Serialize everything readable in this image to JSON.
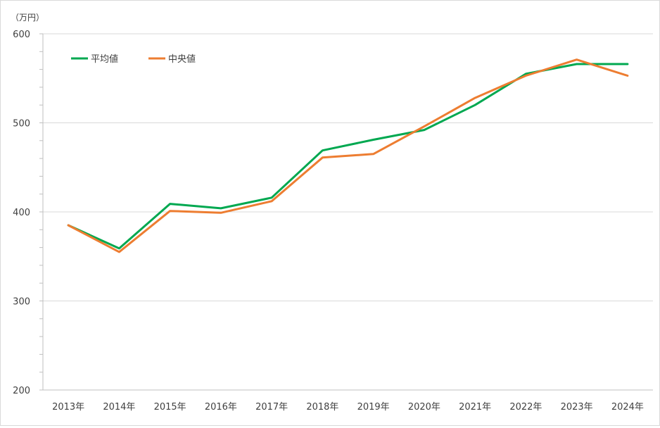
{
  "chart_data": {
    "type": "line",
    "unit_label": "（万円）",
    "categories": [
      "2013年",
      "2014年",
      "2015年",
      "2016年",
      "2017年",
      "2018年",
      "2019年",
      "2020年",
      "2021年",
      "2022年",
      "2023年",
      "2024年"
    ],
    "series": [
      {
        "name": "平均値",
        "color": "#00a850",
        "values": [
          385,
          359,
          409,
          404,
          416,
          469,
          481,
          492,
          520,
          555,
          566,
          566
        ]
      },
      {
        "name": "中央値",
        "color": "#ed7d31",
        "values": [
          385,
          355,
          401,
          399,
          412,
          461,
          465,
          496,
          528,
          553,
          571,
          553
        ]
      }
    ],
    "ylim": [
      200,
      600
    ],
    "yticks": [
      200,
      300,
      400,
      500,
      600
    ],
    "grid": true,
    "legend_position": "top-left"
  }
}
